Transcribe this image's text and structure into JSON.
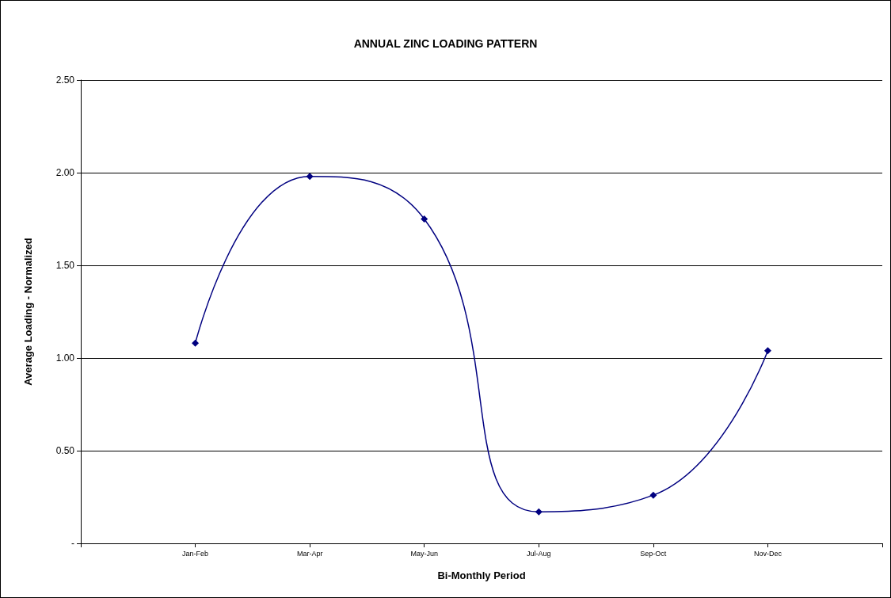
{
  "chart_data": {
    "type": "line",
    "title": "ANNUAL ZINC LOADING PATTERN",
    "xlabel": "Bi-Monthly Period",
    "ylabel": "Average Loading - Normalized",
    "categories": [
      null,
      "Jan-Feb",
      "Mar-Apr",
      "May-Jun",
      "Jul-Aug",
      "Sep-Oct",
      "Nov-Dec",
      null
    ],
    "series": [
      {
        "color": "#000080",
        "values": [
          null,
          1.08,
          1.98,
          1.75,
          0.17,
          0.26,
          1.04,
          null
        ]
      }
    ],
    "ylim": [
      0,
      2.5
    ],
    "yticks": [
      {
        "value": 0,
        "label": "-"
      },
      {
        "value": 0.5,
        "label": "0.50"
      },
      {
        "value": 1,
        "label": "1.00"
      },
      {
        "value": 1.5,
        "label": "1.50"
      },
      {
        "value": 2,
        "label": "2.00"
      },
      {
        "value": 2.5,
        "label": "2.50"
      }
    ],
    "grid": "y",
    "marker": "diamond",
    "line_style": "solid"
  }
}
